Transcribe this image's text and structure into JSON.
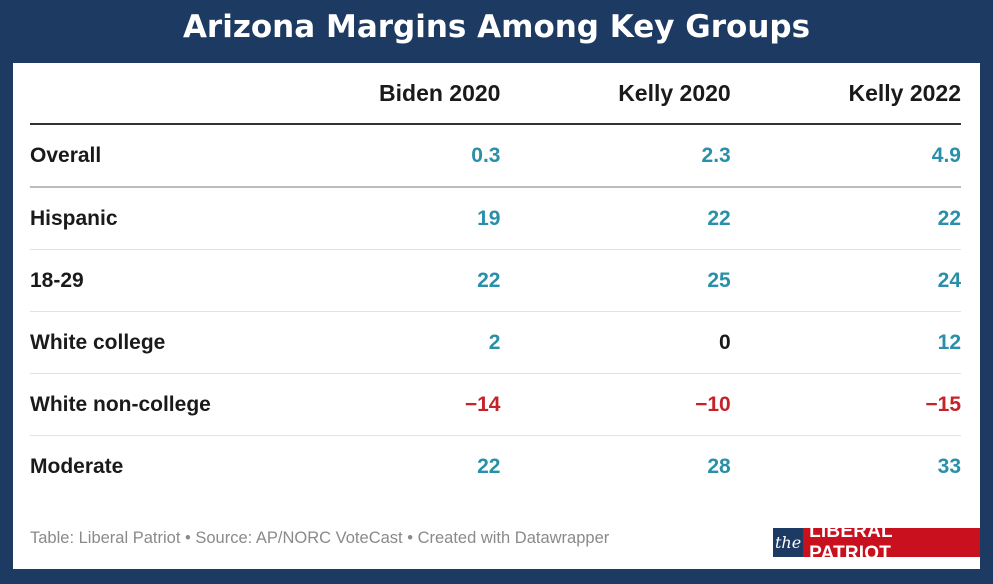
{
  "title": "Arizona Margins Among Key Groups",
  "colors": {
    "background": "#1d3a63",
    "positive": "#2a8fa8",
    "negative": "#c4232a",
    "zero": "#1a1a1a",
    "logo_red": "#c8101f"
  },
  "chart_data": {
    "type": "table",
    "title": "Arizona Margins Among Key Groups",
    "columns": [
      "",
      "Biden 2020",
      "Kelly 2020",
      "Kelly 2022"
    ],
    "rows": [
      {
        "group": "Overall",
        "values": [
          "0.3",
          "2.3",
          "4.9"
        ]
      },
      {
        "group": "Hispanic",
        "values": [
          "19",
          "22",
          "22"
        ]
      },
      {
        "group": "18-29",
        "values": [
          "22",
          "25",
          "24"
        ]
      },
      {
        "group": "White college",
        "values": [
          "2",
          "0",
          "12"
        ]
      },
      {
        "group": "White non-college",
        "values": [
          "−14",
          "−10",
          "−15"
        ]
      },
      {
        "group": "Moderate",
        "values": [
          "22",
          "28",
          "33"
        ]
      }
    ]
  },
  "footer": "Table: Liberal Patriot • Source: AP/NORC VoteCast • Created with Datawrapper",
  "logo": {
    "prefix": "the",
    "name": "LIBERAL PATRIOT"
  }
}
